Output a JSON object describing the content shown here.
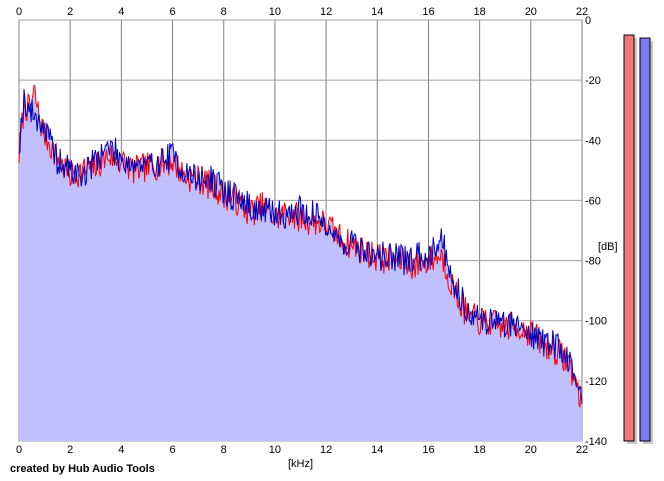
{
  "credit": "created by Hub Audio Tools",
  "chart_data": {
    "type": "area",
    "x_unit_label": "[kHz]",
    "y_unit_label": "[dB]",
    "xlim": [
      0,
      22
    ],
    "ylim": [
      -140,
      0
    ],
    "x_ticks": [
      0,
      2,
      4,
      6,
      8,
      10,
      12,
      14,
      16,
      18,
      20,
      22
    ],
    "y_ticks": [
      0,
      -20,
      -40,
      -60,
      -80,
      -100,
      -120,
      -140
    ],
    "grid": true,
    "x": [
      0,
      0.2,
      0.4,
      0.6,
      0.8,
      1,
      1.5,
      2,
      2.5,
      3,
      3.5,
      4,
      4.5,
      5,
      5.5,
      6,
      6.5,
      7,
      7.5,
      8,
      8.5,
      9,
      9.5,
      10,
      10.5,
      11,
      11.5,
      12,
      12.5,
      13,
      13.5,
      14,
      14.5,
      15,
      15.5,
      16,
      16.5,
      17,
      17.5,
      18,
      18.5,
      19,
      19.5,
      20,
      20.5,
      21,
      21.5,
      22
    ],
    "series": [
      {
        "color": "#ff0000",
        "values": [
          -45,
          -28,
          -30,
          -24,
          -33,
          -38,
          -46,
          -52,
          -50,
          -49,
          -45,
          -47,
          -50,
          -49,
          -48,
          -47,
          -52,
          -53,
          -55,
          -58,
          -60,
          -64,
          -62,
          -66,
          -64,
          -66,
          -67,
          -68,
          -72,
          -75,
          -77,
          -79,
          -80,
          -80,
          -82,
          -80,
          -78,
          -90,
          -98,
          -100,
          -101,
          -102,
          -102,
          -104,
          -108,
          -110,
          -114,
          -127
        ]
      },
      {
        "color": "#0000c0",
        "values": [
          -42,
          -26,
          -30,
          -32,
          -33,
          -36,
          -47,
          -50,
          -52,
          -46,
          -42,
          -46,
          -48,
          -49,
          -47,
          -45,
          -51,
          -53,
          -53,
          -57,
          -59,
          -62,
          -64,
          -64,
          -65,
          -63,
          -65,
          -67,
          -74,
          -74,
          -77,
          -79,
          -78,
          -80,
          -79,
          -78,
          -72,
          -88,
          -96,
          -100,
          -100,
          -101,
          -101,
          -104,
          -107,
          -108,
          -113,
          -126
        ]
      }
    ],
    "fill_color": "#c0c0ff",
    "level_meters": [
      {
        "color": "#f07878",
        "value_db": -5
      },
      {
        "color": "#7c7cf0",
        "value_db": -6
      }
    ]
  }
}
